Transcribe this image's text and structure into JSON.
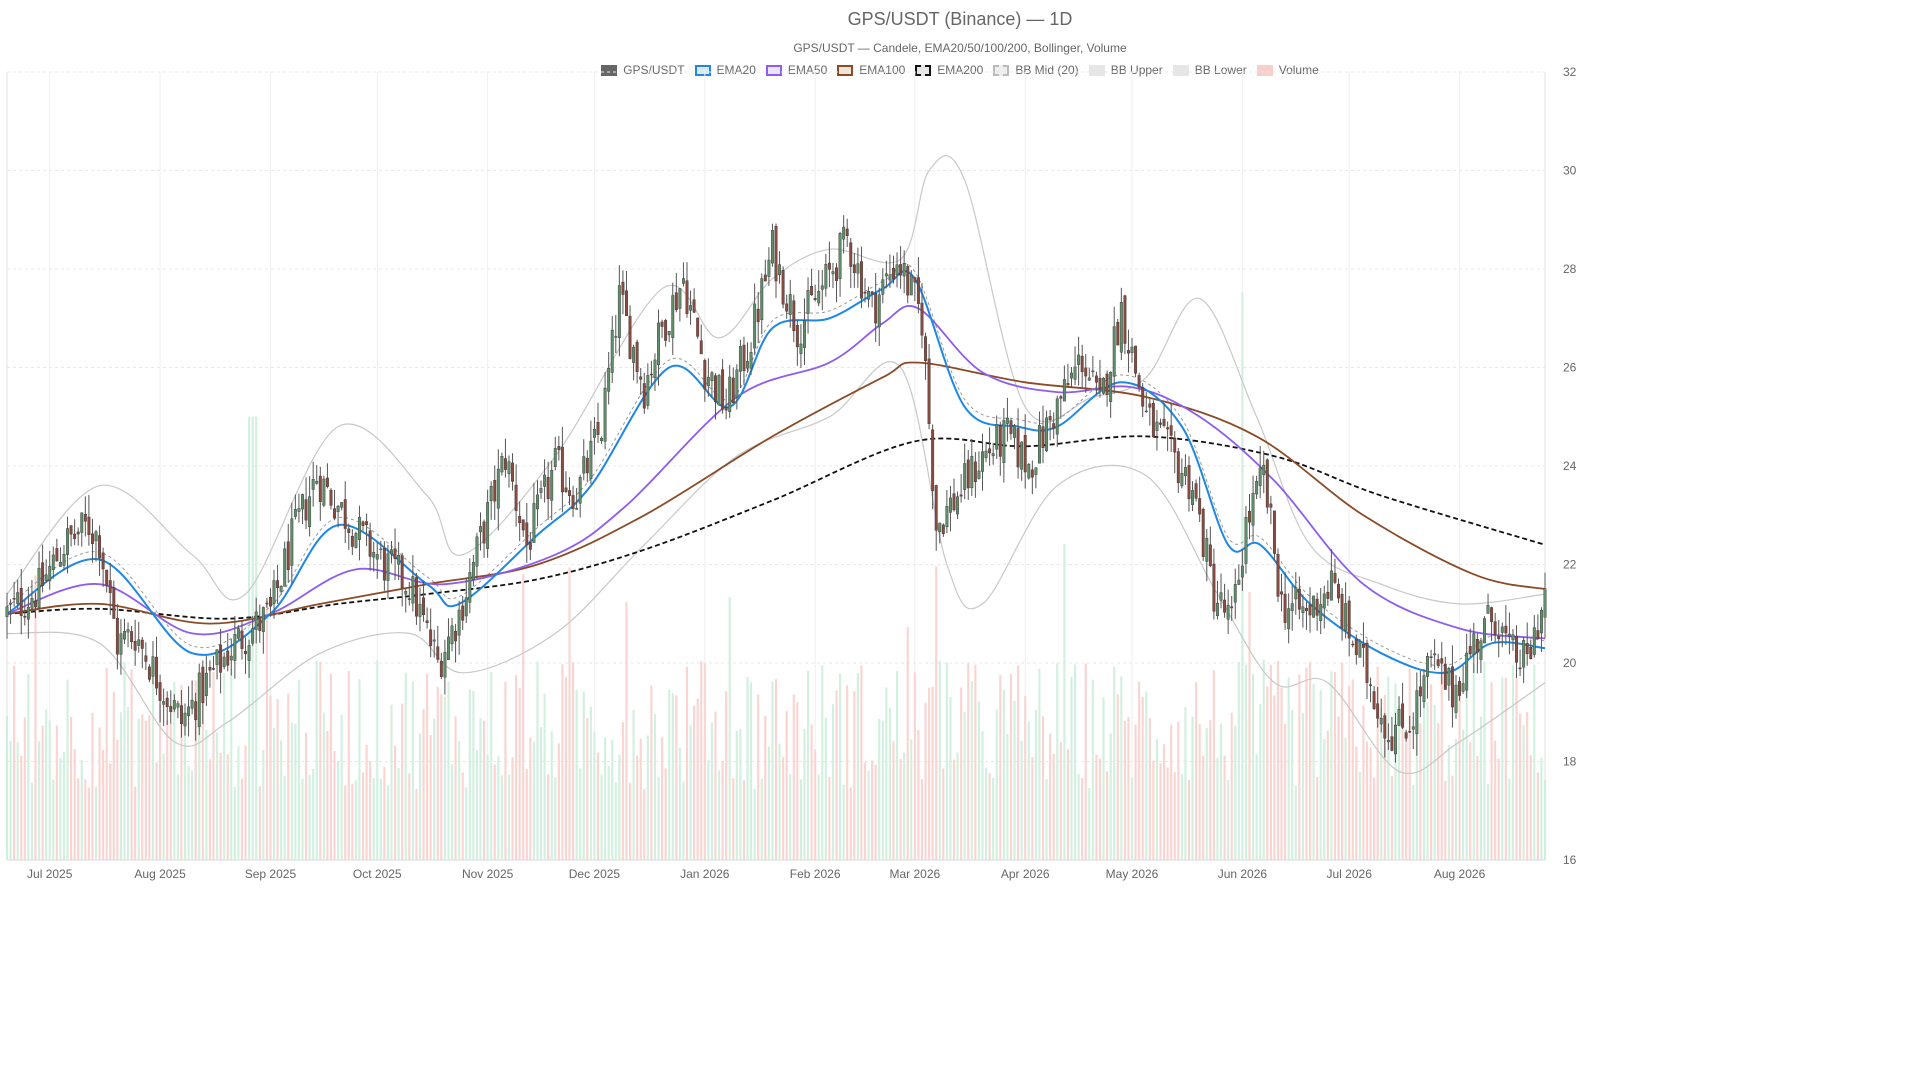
{
  "title": "GPS/USDT (Binance) — 1D",
  "subtitle": "GPS/USDT — Candele, EMA20/50/100/200, Bollinger, Volume",
  "legend": [
    {
      "label": "GPS/USDT",
      "fill": "#666666",
      "stroke": "#666666",
      "dashed": false
    },
    {
      "label": "EMA20",
      "fill": "#dbe9f7",
      "stroke": "#1e88e5",
      "dashed": false
    },
    {
      "label": "EMA50",
      "fill": "#ece4fb",
      "stroke": "#8e5cf0",
      "dashed": false
    },
    {
      "label": "EMA100",
      "fill": "#efe3da",
      "stroke": "#8a4b26",
      "dashed": false
    },
    {
      "label": "EMA200",
      "fill": "#e6e6e6",
      "stroke": "#111111",
      "dashed": true
    },
    {
      "label": "BB Mid (20)",
      "fill": "#eeeeee",
      "stroke": "#bbbbbb",
      "dashed": true
    },
    {
      "label": "BB Upper",
      "fill": "#e6e6e6",
      "stroke": "#e6e6e6",
      "dashed": false
    },
    {
      "label": "BB Lower",
      "fill": "#e6e6e6",
      "stroke": "#e6e6e6",
      "dashed": false
    },
    {
      "label": "Volume",
      "fill": "#f9cfcc",
      "stroke": "#f9cfcc",
      "dashed": false
    }
  ],
  "chart_data": {
    "type": "candlestick",
    "title": "GPS/USDT (Binance) — 1D",
    "y_axis": {
      "position": "right",
      "min": 16,
      "max": 32,
      "ticks": [
        16,
        18,
        20,
        22,
        24,
        26,
        28,
        30,
        32
      ]
    },
    "x_axis": {
      "start": "2025-06-19",
      "end": "2026-08-25",
      "tick_labels": [
        {
          "label": "Jul 2025",
          "date": "2025-07-01"
        },
        {
          "label": "Aug 2025",
          "date": "2025-08-01"
        },
        {
          "label": "Sep 2025",
          "date": "2025-09-01"
        },
        {
          "label": "Oct 2025",
          "date": "2025-10-01"
        },
        {
          "label": "Nov 2025",
          "date": "2025-11-01"
        },
        {
          "label": "Dec 2025",
          "date": "2025-12-01"
        },
        {
          "label": "Jan 2026",
          "date": "2026-01-01"
        },
        {
          "label": "Feb 2026",
          "date": "2026-02-01"
        },
        {
          "label": "Mar 2026",
          "date": "2026-03-01"
        },
        {
          "label": "Apr 2026",
          "date": "2026-04-01"
        },
        {
          "label": "May 2026",
          "date": "2026-05-01"
        },
        {
          "label": "Jun 2026",
          "date": "2026-06-01"
        },
        {
          "label": "Jul 2026",
          "date": "2026-07-01"
        },
        {
          "label": "Aug 2026",
          "date": "2026-08-01"
        }
      ]
    },
    "grid": true,
    "legend_position": "top-center",
    "price_key_points": [
      {
        "date": "2025-06-19",
        "close": 21.0
      },
      {
        "date": "2025-06-28",
        "close": 21.5
      },
      {
        "date": "2025-07-05",
        "close": 22.4
      },
      {
        "date": "2025-07-12",
        "close": 22.8
      },
      {
        "date": "2025-07-15",
        "close": 22.5
      },
      {
        "date": "2025-07-20",
        "close": 20.4
      },
      {
        "date": "2025-07-25",
        "close": 20.6
      },
      {
        "date": "2025-08-01",
        "close": 19.6
      },
      {
        "date": "2025-08-07",
        "close": 18.8
      },
      {
        "date": "2025-08-14",
        "close": 19.6
      },
      {
        "date": "2025-08-22",
        "close": 20.4
      },
      {
        "date": "2025-09-01",
        "close": 21.0
      },
      {
        "date": "2025-09-07",
        "close": 22.5
      },
      {
        "date": "2025-09-14",
        "close": 23.8
      },
      {
        "date": "2025-09-20",
        "close": 23.2
      },
      {
        "date": "2025-09-26",
        "close": 22.6
      },
      {
        "date": "2025-10-03",
        "close": 22.0
      },
      {
        "date": "2025-10-10",
        "close": 21.6
      },
      {
        "date": "2025-10-18",
        "close": 20.0
      },
      {
        "date": "2025-10-24",
        "close": 21.0
      },
      {
        "date": "2025-11-01",
        "close": 23.0
      },
      {
        "date": "2025-11-06",
        "close": 24.2
      },
      {
        "date": "2025-11-12",
        "close": 22.4
      },
      {
        "date": "2025-11-20",
        "close": 24.0
      },
      {
        "date": "2025-11-26",
        "close": 23.4
      },
      {
        "date": "2025-12-03",
        "close": 24.8
      },
      {
        "date": "2025-12-08",
        "close": 27.4
      },
      {
        "date": "2025-12-15",
        "close": 25.6
      },
      {
        "date": "2025-12-20",
        "close": 26.8
      },
      {
        "date": "2025-12-26",
        "close": 27.8
      },
      {
        "date": "2026-01-01",
        "close": 26.0
      },
      {
        "date": "2026-01-07",
        "close": 25.2
      },
      {
        "date": "2026-01-14",
        "close": 26.6
      },
      {
        "date": "2026-01-20",
        "close": 28.4
      },
      {
        "date": "2026-01-27",
        "close": 26.8
      },
      {
        "date": "2026-02-03",
        "close": 27.6
      },
      {
        "date": "2026-02-10",
        "close": 28.6
      },
      {
        "date": "2026-02-17",
        "close": 27.2
      },
      {
        "date": "2026-02-24",
        "close": 28.2
      },
      {
        "date": "2026-03-03",
        "close": 27.0
      },
      {
        "date": "2026-03-07",
        "close": 22.8
      },
      {
        "date": "2026-03-13",
        "close": 23.4
      },
      {
        "date": "2026-03-20",
        "close": 24.2
      },
      {
        "date": "2026-03-27",
        "close": 24.6
      },
      {
        "date": "2026-04-02",
        "close": 24.0
      },
      {
        "date": "2026-04-10",
        "close": 25.2
      },
      {
        "date": "2026-04-17",
        "close": 26.2
      },
      {
        "date": "2026-04-22",
        "close": 25.2
      },
      {
        "date": "2026-04-28",
        "close": 27.2
      },
      {
        "date": "2026-05-05",
        "close": 25.0
      },
      {
        "date": "2026-05-12",
        "close": 24.2
      },
      {
        "date": "2026-05-18",
        "close": 23.6
      },
      {
        "date": "2026-05-24",
        "close": 21.4
      },
      {
        "date": "2026-05-29",
        "close": 20.8
      },
      {
        "date": "2026-06-02",
        "close": 22.8
      },
      {
        "date": "2026-06-07",
        "close": 23.8
      },
      {
        "date": "2026-06-12",
        "close": 21.2
      },
      {
        "date": "2026-06-19",
        "close": 21.0
      },
      {
        "date": "2026-06-26",
        "close": 21.6
      },
      {
        "date": "2026-07-01",
        "close": 20.6
      },
      {
        "date": "2026-07-07",
        "close": 19.6
      },
      {
        "date": "2026-07-12",
        "close": 18.6
      },
      {
        "date": "2026-07-18",
        "close": 18.8
      },
      {
        "date": "2026-07-24",
        "close": 20.0
      },
      {
        "date": "2026-07-30",
        "close": 19.4
      },
      {
        "date": "2026-08-05",
        "close": 20.4
      },
      {
        "date": "2026-08-11",
        "close": 21.0
      },
      {
        "date": "2026-08-15",
        "close": 20.2
      },
      {
        "date": "2026-08-20",
        "close": 20.0
      },
      {
        "date": "2026-08-25",
        "close": 21.4
      }
    ],
    "ema_key_points": {
      "EMA20": [
        [
          "2025-06-19",
          21.0
        ],
        [
          "2025-07-15",
          22.1
        ],
        [
          "2025-08-10",
          20.2
        ],
        [
          "2025-09-01",
          21.0
        ],
        [
          "2025-09-20",
          22.8
        ],
        [
          "2025-10-15",
          21.6
        ],
        [
          "2025-10-24",
          21.2
        ],
        [
          "2025-11-15",
          22.6
        ],
        [
          "2025-11-30",
          23.6
        ],
        [
          "2025-12-22",
          26.0
        ],
        [
          "2026-01-08",
          25.2
        ],
        [
          "2026-01-20",
          26.8
        ],
        [
          "2026-02-05",
          27.0
        ],
        [
          "2026-02-20",
          27.6
        ],
        [
          "2026-03-01",
          27.8
        ],
        [
          "2026-03-15",
          25.2
        ],
        [
          "2026-03-30",
          24.8
        ],
        [
          "2026-04-10",
          24.8
        ],
        [
          "2026-04-28",
          25.7
        ],
        [
          "2026-05-15",
          24.8
        ],
        [
          "2026-05-28",
          22.4
        ],
        [
          "2026-06-06",
          22.4
        ],
        [
          "2026-06-20",
          21.2
        ],
        [
          "2026-07-10",
          20.2
        ],
        [
          "2026-07-28",
          19.8
        ],
        [
          "2026-08-10",
          20.4
        ],
        [
          "2026-08-25",
          20.3
        ]
      ],
      "EMA50": [
        [
          "2025-06-19",
          21.0
        ],
        [
          "2025-07-15",
          21.6
        ],
        [
          "2025-08-10",
          20.6
        ],
        [
          "2025-09-01",
          21.0
        ],
        [
          "2025-09-25",
          21.9
        ],
        [
          "2025-10-20",
          21.6
        ],
        [
          "2025-11-20",
          22.2
        ],
        [
          "2025-12-10",
          23.2
        ],
        [
          "2026-01-10",
          25.4
        ],
        [
          "2026-02-05",
          26.1
        ],
        [
          "2026-02-20",
          26.9
        ],
        [
          "2026-03-02",
          27.2
        ],
        [
          "2026-03-20",
          25.9
        ],
        [
          "2026-04-10",
          25.5
        ],
        [
          "2026-05-01",
          25.6
        ],
        [
          "2026-05-20",
          25.0
        ],
        [
          "2026-06-10",
          23.7
        ],
        [
          "2026-07-05",
          21.6
        ],
        [
          "2026-08-01",
          20.7
        ],
        [
          "2026-08-25",
          20.5
        ]
      ],
      "EMA100": [
        [
          "2025-06-19",
          21.0
        ],
        [
          "2025-07-15",
          21.2
        ],
        [
          "2025-08-15",
          20.8
        ],
        [
          "2025-09-15",
          21.2
        ],
        [
          "2025-10-15",
          21.6
        ],
        [
          "2025-11-15",
          22.0
        ],
        [
          "2025-12-15",
          23.0
        ],
        [
          "2026-01-20",
          24.6
        ],
        [
          "2026-02-20",
          25.8
        ],
        [
          "2026-03-02",
          26.1
        ],
        [
          "2026-04-01",
          25.7
        ],
        [
          "2026-05-05",
          25.4
        ],
        [
          "2026-06-05",
          24.6
        ],
        [
          "2026-07-05",
          23.0
        ],
        [
          "2026-08-05",
          21.8
        ],
        [
          "2026-08-25",
          21.5
        ]
      ],
      "EMA200": [
        [
          "2025-06-19",
          21.0
        ],
        [
          "2025-07-15",
          21.1
        ],
        [
          "2025-08-20",
          20.9
        ],
        [
          "2025-09-20",
          21.2
        ],
        [
          "2025-10-15",
          21.4
        ],
        [
          "2025-11-15",
          21.7
        ],
        [
          "2025-12-15",
          22.3
        ],
        [
          "2026-01-20",
          23.3
        ],
        [
          "2026-03-01",
          24.5
        ],
        [
          "2026-04-01",
          24.4
        ],
        [
          "2026-05-05",
          24.6
        ],
        [
          "2026-06-10",
          24.2
        ],
        [
          "2026-07-10",
          23.4
        ],
        [
          "2026-08-25",
          22.4
        ]
      ]
    },
    "bollinger_key_points": {
      "upper": [
        [
          "2025-06-19",
          21.4
        ],
        [
          "2025-07-15",
          23.6
        ],
        [
          "2025-08-10",
          22.2
        ],
        [
          "2025-08-25",
          21.4
        ],
        [
          "2025-09-20",
          24.8
        ],
        [
          "2025-10-15",
          23.4
        ],
        [
          "2025-10-25",
          22.2
        ],
        [
          "2025-11-20",
          24.2
        ],
        [
          "2025-12-20",
          27.6
        ],
        [
          "2026-01-05",
          26.6
        ],
        [
          "2026-01-20",
          27.8
        ],
        [
          "2026-02-05",
          28.4
        ],
        [
          "2026-02-25",
          28.2
        ],
        [
          "2026-03-05",
          30.0
        ],
        [
          "2026-03-15",
          29.8
        ],
        [
          "2026-04-01",
          25.2
        ],
        [
          "2026-04-20",
          25.4
        ],
        [
          "2026-05-05",
          25.8
        ],
        [
          "2026-05-20",
          27.4
        ],
        [
          "2026-06-05",
          25.0
        ],
        [
          "2026-06-20",
          22.4
        ],
        [
          "2026-07-10",
          21.6
        ],
        [
          "2026-08-01",
          21.2
        ],
        [
          "2026-08-25",
          21.4
        ]
      ],
      "lower": [
        [
          "2025-06-19",
          20.6
        ],
        [
          "2025-07-15",
          20.4
        ],
        [
          "2025-08-05",
          18.4
        ],
        [
          "2025-08-20",
          18.8
        ],
        [
          "2025-09-15",
          20.2
        ],
        [
          "2025-10-10",
          20.6
        ],
        [
          "2025-10-25",
          19.8
        ],
        [
          "2025-11-20",
          20.6
        ],
        [
          "2025-12-15",
          22.4
        ],
        [
          "2026-01-10",
          24.2
        ],
        [
          "2026-02-05",
          25.0
        ],
        [
          "2026-02-25",
          26.0
        ],
        [
          "2026-03-10",
          22.0
        ],
        [
          "2026-03-20",
          21.2
        ],
        [
          "2026-04-10",
          23.6
        ],
        [
          "2026-05-05",
          23.8
        ],
        [
          "2026-05-25",
          21.4
        ],
        [
          "2026-06-10",
          19.6
        ],
        [
          "2026-06-25",
          19.6
        ],
        [
          "2026-07-15",
          17.8
        ],
        [
          "2026-08-01",
          18.4
        ],
        [
          "2026-08-25",
          19.6
        ]
      ]
    },
    "volume_note": "Volume bars drawn from baseline; typical height ~30% of plot, spikes at 2025-08-27 and 2026-06-01"
  }
}
